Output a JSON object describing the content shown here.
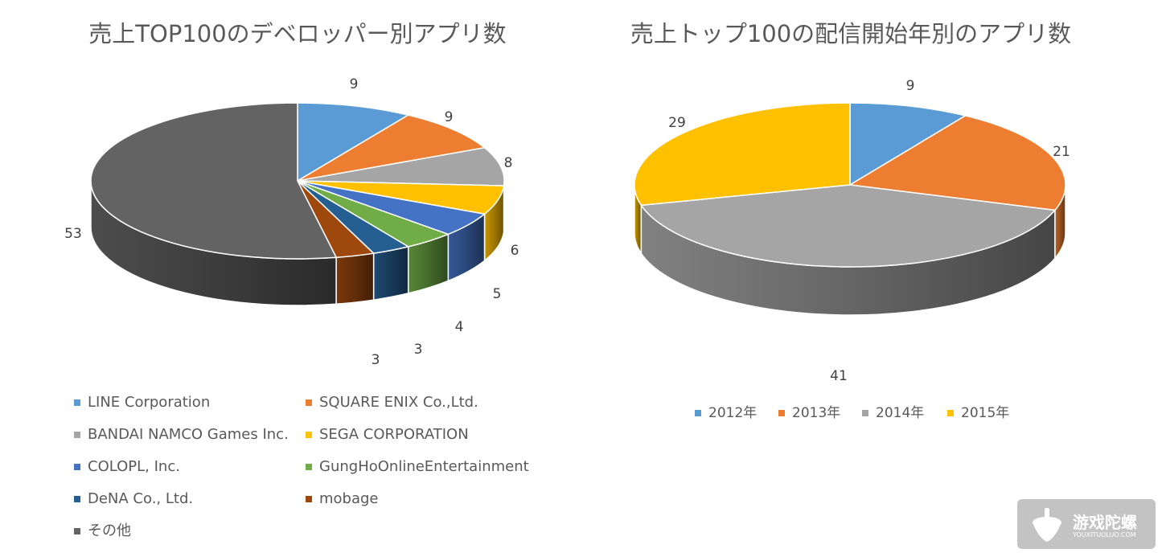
{
  "chart_data": [
    {
      "type": "pie",
      "style": "3d",
      "title": "売上TOP100のデベロッパー別アプリ数",
      "categories": [
        "LINE Corporation",
        "SQUARE ENIX Co.,Ltd.",
        "BANDAI NAMCO Games Inc.",
        "SEGA CORPORATION",
        "COLOPL, Inc.",
        "GungHoOnlineEntertainment",
        "DeNA Co., Ltd.",
        "mobage",
        "その他"
      ],
      "values": [
        9,
        9,
        8,
        6,
        5,
        4,
        3,
        3,
        53
      ],
      "colors": [
        "#5B9BD5",
        "#ED7D31",
        "#A5A5A5",
        "#FFC000",
        "#4472C4",
        "#70AD47",
        "#255E91",
        "#9E480E",
        "#636363"
      ],
      "legend_position": "bottom"
    },
    {
      "type": "pie",
      "style": "3d",
      "title": "売上トップ100の配信開始年別のアプリ数",
      "categories": [
        "2012年",
        "2013年",
        "2014年",
        "2015年"
      ],
      "values": [
        9,
        21,
        41,
        29
      ],
      "colors": [
        "#5B9BD5",
        "#ED7D31",
        "#A5A5A5",
        "#FFC000"
      ],
      "legend_position": "bottom"
    }
  ],
  "watermark": {
    "name": "游戏陀螺",
    "url": "YOUXITUOLUO.COM",
    "icon": "spinning-top-icon"
  }
}
